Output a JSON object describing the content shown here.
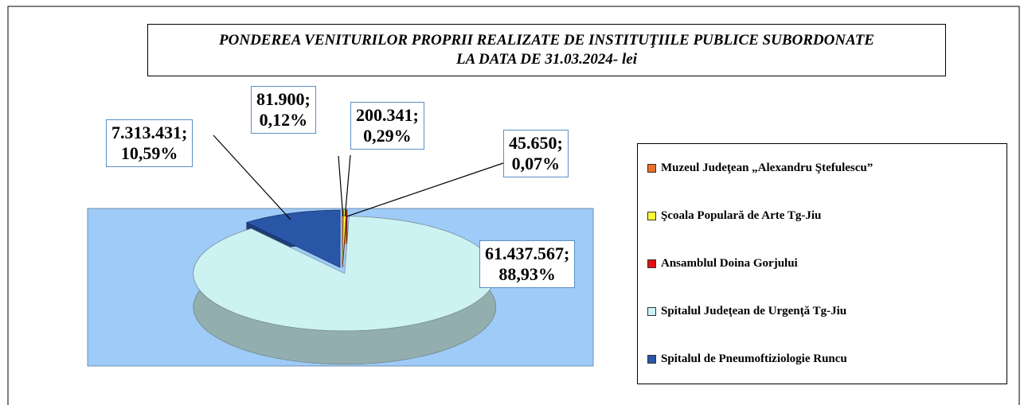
{
  "chart_data": {
    "type": "pie",
    "title": [
      "PONDEREA VENITURILOR  PROPRII  REALIZATE DE  INSTITUŢIILE  PUBLICE SUBORDONATE",
      "LA DATA DE 31.03.2024- lei"
    ],
    "categories": [
      "Muzeul Judeţean „Alexandru Ştefulescu”",
      "Şcoala Populară de Arte Tg-Jiu",
      "Ansamblul Doina Gorjului",
      "Spitalul Judeţean de Urgenţă Tg-Jiu",
      "Spitalul de Pneumoftiziologie Runcu"
    ],
    "values": [
      81900,
      200341,
      45650,
      61437567,
      7313431
    ],
    "value_labels": [
      "81.900; 0,12%",
      "200.341; 0,29%",
      "45.650; 0,07%",
      "61.437.567; 88,93%",
      "7.313.431; 10,59%"
    ],
    "colors": [
      "#e8702a",
      "#ffff33",
      "#e01010",
      "#ccf2f2",
      "#2a56a8"
    ],
    "legend": "right"
  }
}
